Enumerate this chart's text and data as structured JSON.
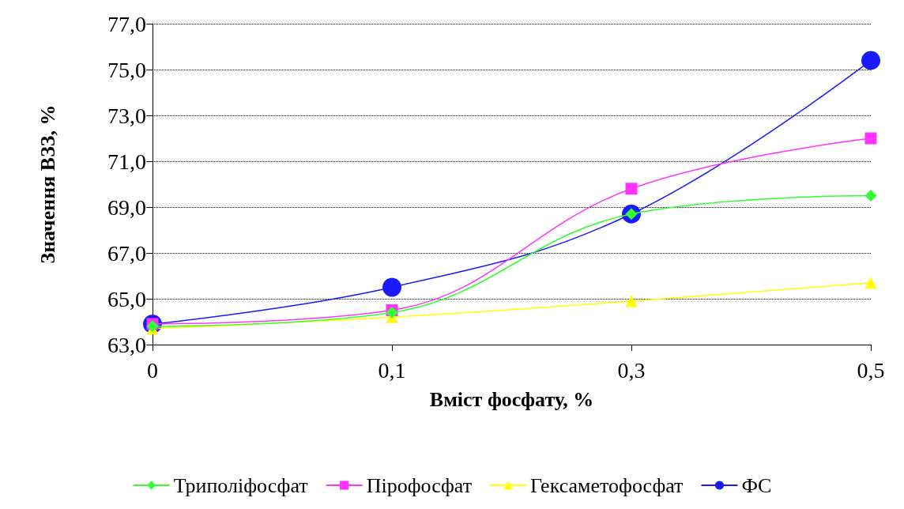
{
  "chart_data": {
    "type": "line",
    "xlabel": "Вміст фосфату, %",
    "ylabel": "Значення ВЗЗ, %",
    "categories": [
      "0",
      "0,1",
      "0,3",
      "0,5"
    ],
    "ylim": [
      63,
      77
    ],
    "yticks": [
      {
        "value": 63,
        "label": "63,0"
      },
      {
        "value": 65,
        "label": "65,0"
      },
      {
        "value": 67,
        "label": "67,0"
      },
      {
        "value": 69,
        "label": "69,0"
      },
      {
        "value": 71,
        "label": "71,0"
      },
      {
        "value": 73,
        "label": "73,0"
      },
      {
        "value": 75,
        "label": "75,0"
      },
      {
        "value": 77,
        "label": "77,0"
      }
    ],
    "grid": "y",
    "legend": "bottom",
    "line_style": "solid",
    "series": [
      {
        "name": "Триполіфосфат",
        "color": "#33ff33",
        "marker": "diamond",
        "values": [
          63.8,
          64.4,
          68.7,
          69.5
        ]
      },
      {
        "name": "Пірофосфат",
        "color": "#ff33ff",
        "marker": "square",
        "values": [
          63.9,
          64.5,
          69.8,
          72.0
        ]
      },
      {
        "name": "Гексаметофосфат",
        "color": "#ffff00",
        "marker": "triangle",
        "values": [
          63.7,
          64.2,
          64.9,
          65.7
        ]
      },
      {
        "name": "ФС",
        "color": "#1a1aff",
        "marker": "circle",
        "values": [
          63.9,
          65.5,
          68.7,
          75.4
        ]
      }
    ]
  }
}
